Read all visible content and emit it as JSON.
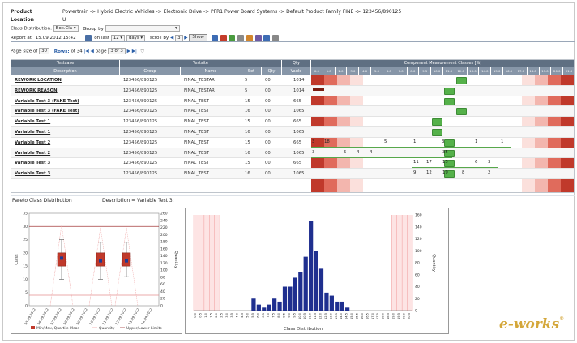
{
  "header": {
    "product_label": "Product",
    "product_value": "Powertrain -> Hybrid Electric Vehicles -> Electronic Drive -> PFR1 Power Board Systems -> Default Product Family FINE -> 123456/890125",
    "location_label": "Location",
    "location_value": "U"
  },
  "controls": {
    "class_distribution_label": "Class Distribution:",
    "class_distribution_value": "Box.Cla",
    "group_by_label": "Group by",
    "report_at_label": "Report at",
    "report_at_value": "15.09.2012 15:42",
    "on_last_label": "on last",
    "on_last_value": "12",
    "unit_value": "days",
    "scroll_by_label": "scroll by",
    "scroll_by_value": "3",
    "show_button": "Show",
    "page_size_label": "Page size of",
    "page_size_value": "30",
    "rows_label": "Rows:",
    "rows_value": "of 34",
    "page_label": "page",
    "page_value": "3 of 3",
    "colors": {
      "accent": "#2b5fa8",
      "icon_red": "#c43c2a",
      "icon_green": "#4a9b3f"
    }
  },
  "grid": {
    "group_headers": [
      "Testcase",
      "Testsite",
      "Qty",
      "Component Measurement Classes [%]"
    ],
    "sub_headers": [
      "Description",
      "Group",
      "Name",
      "Set",
      "Qty",
      "Vaule"
    ],
    "class_headers": [
      "0.0",
      "1.0",
      "2.0",
      "3.0",
      "4.0",
      "5.0",
      "6.0",
      "7.0",
      "8.0",
      "9.5",
      "10.0",
      "11.0",
      "12.0",
      "13.0",
      "14.0",
      "15.0",
      "16.0",
      "17.0",
      "18.0",
      "19.0",
      "20.0",
      "21.0"
    ],
    "rows": [
      {
        "description": "REWORK LOCATION",
        "group": "123456/890125",
        "name": "FINAL_TESTAR",
        "set": "5",
        "qty": "00",
        "value": "1014"
      },
      {
        "description": "REWORK REASON",
        "group": "123456/890125",
        "name": "FINAL_TESTAR",
        "set": "5",
        "qty": "00",
        "value": "1014"
      },
      {
        "description": "Variable Test 3 (FAKE Test)",
        "group": "123456/890125",
        "name": "FINAL_TEST",
        "set": "15",
        "qty": "00",
        "value": "665"
      },
      {
        "description": "Variable Test 3 (FAKE Test)",
        "group": "123456/890125",
        "name": "FINAL_TEST",
        "set": "16",
        "qty": "00",
        "value": "1065"
      },
      {
        "description": "Variable Test 1",
        "group": "123456/890125",
        "name": "FINAL_TEST",
        "set": "15",
        "qty": "00",
        "value": "665"
      },
      {
        "description": "Variable Test 1",
        "group": "123456/890125",
        "name": "FINAL_TEST",
        "set": "16",
        "qty": "00",
        "value": "1065"
      },
      {
        "description": "Variable Test 2",
        "group": "123456/890125",
        "name": "FINAL_TEST",
        "set": "15",
        "qty": "00",
        "value": "665"
      },
      {
        "description": "Variable Test 2",
        "group": "123456/890125",
        "name": "FINAL_TEST",
        "set": "16",
        "qty": "00",
        "value": "1065"
      },
      {
        "description": "Variable Test 3",
        "group": "123456/890125",
        "name": "FINAL_TEST",
        "set": "15",
        "qty": "00",
        "value": "665"
      },
      {
        "description": "Variable Test 3",
        "group": "123456/890125",
        "name": "FINAL_TEST",
        "set": "16",
        "qty": "00",
        "value": "1065"
      }
    ],
    "row_numbers": [
      {
        "row": 6,
        "items": [
          "3",
          "18",
          "5",
          "1",
          "3",
          "1",
          "1"
        ]
      },
      {
        "row": 7,
        "items": [
          "3",
          "5",
          "4",
          "4",
          "35"
        ]
      },
      {
        "row": 8,
        "items": [
          "11",
          "17",
          "15",
          "6",
          "3"
        ]
      },
      {
        "row": 9,
        "items": [
          "9",
          "12",
          "19",
          "8",
          "2"
        ]
      }
    ]
  },
  "lower_panel": {
    "pareto_label": "Pareto Class Distribution",
    "description_label": "Description = Variable Test 3;"
  },
  "chart_data": [
    {
      "type": "box",
      "title": "",
      "ylabel": "Class",
      "y2label": "Quantity",
      "ylim": [
        0,
        35
      ],
      "y2lim": [
        0,
        260
      ],
      "yticks": [
        "0",
        "5",
        "10",
        "15",
        "20",
        "25",
        "30",
        "35"
      ],
      "y2ticks": [
        "0",
        "20",
        "40",
        "60",
        "80",
        "100",
        "120",
        "140",
        "160",
        "180",
        "200",
        "220",
        "240",
        "260"
      ],
      "categories": [
        "05.09.2012",
        "06.09.2012",
        "07.09.2012",
        "08.09.2012",
        "09.09.2012",
        "10.09.2012",
        "11.09.2012",
        "12.09.2012",
        "13.09.2012",
        "14.09.2012"
      ],
      "boxes": [
        {
          "category_index": 2,
          "min": 10,
          "q1": 15,
          "median": 18,
          "q3": 20,
          "max": 25
        },
        {
          "category_index": 5,
          "min": 10,
          "q1": 15,
          "median": 17,
          "q3": 20,
          "max": 24
        },
        {
          "category_index": 7,
          "min": 11,
          "q1": 15,
          "median": 17,
          "q3": 20,
          "max": 24
        }
      ],
      "upper_limit": 30,
      "lower_limit": 4,
      "legend": [
        "Min/Max, Quartile Mean",
        "Quantity",
        "Upper/Lower Limits"
      ]
    },
    {
      "type": "bar",
      "title": "",
      "xlabel": "Class Distribution",
      "ylabel": "Quantity",
      "ylim": [
        0,
        160
      ],
      "yticks": [
        "0",
        "20",
        "40",
        "60",
        "80",
        "100",
        "120",
        "140",
        "160"
      ],
      "categories": [
        "0.0",
        "0.5",
        "1.0",
        "1.5",
        "2.0",
        "2.5",
        "3.0",
        "3.5",
        "4.0",
        "4.5",
        "5.0",
        "5.5",
        "6.0",
        "6.5",
        "7.0",
        "7.5",
        "8.0",
        "8.5",
        "9.0",
        "9.5",
        "10.0",
        "10.5",
        "11.0",
        "11.5",
        "12.0",
        "12.5",
        "13.0",
        "13.5",
        "14.0",
        "14.5",
        "15.0",
        "15.5",
        "16.0",
        "16.5",
        "17.0",
        "17.5",
        "18.0",
        "18.5",
        "19.0",
        "19.5",
        "20.0",
        "20.5"
      ],
      "values": [
        0,
        0,
        0,
        0,
        0,
        0,
        0,
        0,
        0,
        0,
        0,
        20,
        10,
        5,
        10,
        20,
        15,
        40,
        40,
        55,
        65,
        90,
        150,
        100,
        70,
        30,
        25,
        15,
        15,
        5,
        0,
        0,
        0,
        0,
        0,
        0,
        0,
        0,
        0,
        0,
        0,
        0
      ],
      "limit_band_left": [
        0,
        4
      ],
      "limit_band_right": [
        38,
        41
      ]
    }
  ],
  "branding": {
    "logo_text": "e-works",
    "logo_superscript": "®"
  }
}
